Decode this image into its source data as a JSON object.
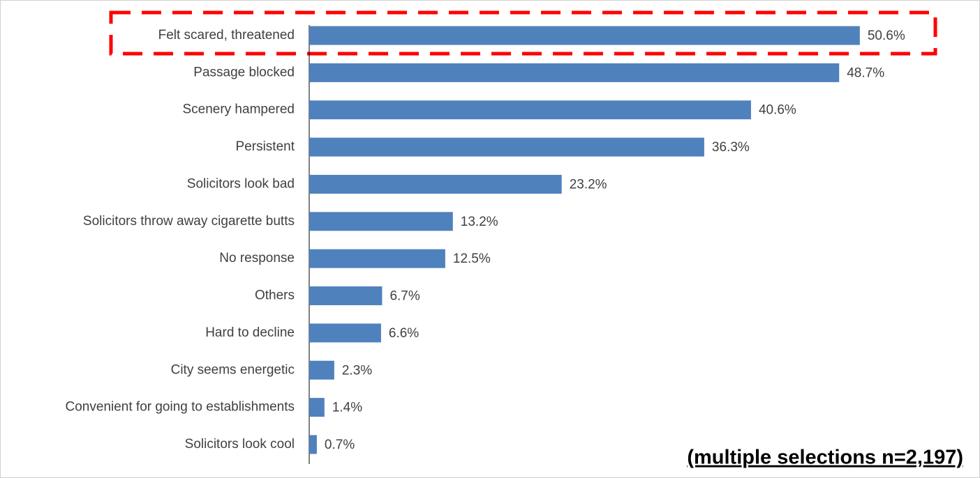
{
  "chart_data": {
    "type": "bar",
    "orientation": "horizontal",
    "categories": [
      "Felt scared, threatened",
      "Passage blocked",
      "Scenery hampered",
      "Persistent",
      "Solicitors look bad",
      "Solicitors throw away cigarette butts",
      "No response",
      "Others",
      "Hard to decline",
      "City seems energetic",
      "Convenient for going to establishments",
      "Solicitors look cool"
    ],
    "values": [
      50.6,
      48.7,
      40.6,
      36.3,
      23.2,
      13.2,
      12.5,
      6.7,
      6.6,
      2.3,
      1.4,
      0.7
    ],
    "value_labels": [
      "50.6%",
      "48.7%",
      "40.6%",
      "36.3%",
      "23.2%",
      "13.2%",
      "12.5%",
      "6.7%",
      "6.6%",
      "2.3%",
      "1.4%",
      "0.7%"
    ],
    "color": "#4f81bd",
    "annotation": "(multiple selections n=2,197)"
  }
}
